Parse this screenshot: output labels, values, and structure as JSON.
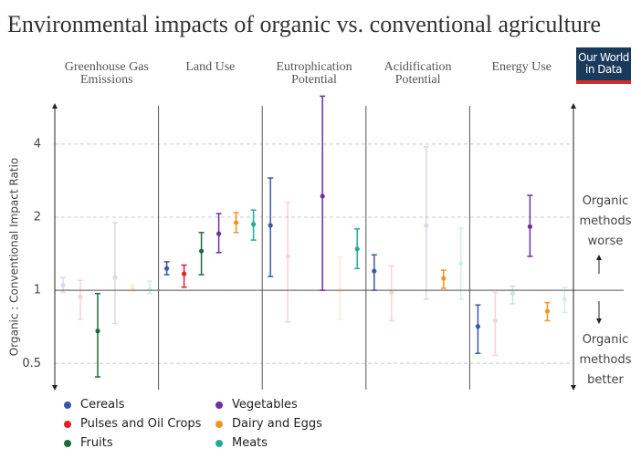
{
  "chart_data": {
    "type": "errorbar",
    "title": "Environmental impacts of organic vs. conventional agriculture",
    "logo": "Our World in Data",
    "y_label": "Organic : Conventional Impact Ratio",
    "annotation_top": "Organic methods worse",
    "annotation_bottom": "Organic methods better",
    "categories": [
      "Greenhouse Gas Emissions",
      "Land Use",
      "Eutrophication Potential",
      "Acidification Potential",
      "Energy Use"
    ],
    "log_scale": true,
    "ylim": [
      0.39,
      6.6
    ],
    "yticks": [
      0.5,
      1,
      2,
      4
    ],
    "grid": true,
    "reference_line": 1,
    "series": [
      {
        "name": "Cereals",
        "color": "#3a57a5",
        "values": [
          1.05,
          1.23,
          1.85,
          1.2,
          0.71
        ],
        "low": [
          0.98,
          1.16,
          1.14,
          1.0,
          0.55
        ],
        "high": [
          1.13,
          1.31,
          2.9,
          1.4,
          0.87
        ],
        "highlighted": [
          false,
          true,
          true,
          true,
          true
        ]
      },
      {
        "name": "Pulses and Oil Crops",
        "color": "#e0202a",
        "values": [
          0.94,
          1.17,
          1.38,
          0.98,
          0.75
        ],
        "low": [
          0.76,
          1.03,
          0.74,
          0.75,
          0.54
        ],
        "high": [
          1.1,
          1.27,
          2.3,
          1.26,
          0.98
        ],
        "highlighted": [
          false,
          true,
          false,
          false,
          false
        ]
      },
      {
        "name": "Fruits",
        "color": "#1e6a3a",
        "values": [
          0.68,
          1.45,
          null,
          null,
          0.97
        ],
        "low": [
          0.44,
          1.16,
          null,
          null,
          0.88
        ],
        "high": [
          0.97,
          1.73,
          null,
          null,
          1.04
        ],
        "highlighted": [
          true,
          true,
          false,
          false,
          false
        ]
      },
      {
        "name": "Vegetables",
        "color": "#6f2f9e",
        "values": [
          1.13,
          1.71,
          2.44,
          1.85,
          1.83
        ],
        "low": [
          0.73,
          1.43,
          1.0,
          0.92,
          1.38
        ],
        "high": [
          1.9,
          2.07,
          6.3,
          3.9,
          2.46
        ],
        "highlighted": [
          false,
          true,
          true,
          false,
          true
        ]
      },
      {
        "name": "Dairy and Eggs",
        "color": "#f2951f",
        "values": [
          1.01,
          1.9,
          1.0,
          1.12,
          0.82
        ],
        "low": [
          0.99,
          1.73,
          0.76,
          1.02,
          0.75
        ],
        "high": [
          1.05,
          2.09,
          1.37,
          1.21,
          0.89
        ],
        "highlighted": [
          false,
          true,
          false,
          true,
          true
        ]
      },
      {
        "name": "Meats",
        "color": "#1fad9a",
        "values": [
          1.01,
          1.87,
          1.48,
          1.29,
          0.92
        ],
        "low": [
          0.97,
          1.61,
          1.23,
          0.92,
          0.81
        ],
        "high": [
          1.09,
          2.14,
          1.79,
          1.8,
          1.03
        ],
        "highlighted": [
          false,
          true,
          true,
          false,
          false
        ]
      }
    ]
  }
}
